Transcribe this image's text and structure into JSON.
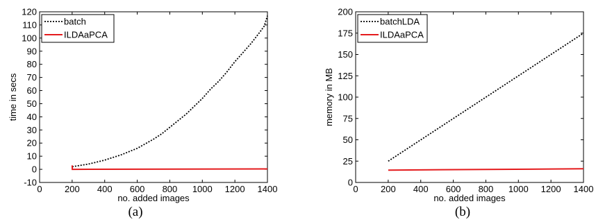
{
  "chart_data": [
    {
      "type": "line",
      "caption": "(a)",
      "xlabel": "no. added images",
      "ylabel": "time in secs",
      "xlim": [
        0,
        1400
      ],
      "ylim": [
        -10,
        120
      ],
      "xticks": [
        0,
        200,
        400,
        600,
        800,
        1000,
        1200,
        1400
      ],
      "yticks": [
        -10,
        0,
        10,
        20,
        30,
        40,
        50,
        60,
        70,
        80,
        90,
        100,
        110,
        120
      ],
      "grid": false,
      "legend_position": "top-left",
      "series": [
        {
          "name": "batch",
          "style": "dotted",
          "color": "#000000",
          "x": [
            200,
            250,
            300,
            350,
            400,
            450,
            500,
            550,
            600,
            650,
            700,
            750,
            800,
            850,
            900,
            950,
            1000,
            1050,
            1100,
            1150,
            1200,
            1250,
            1300,
            1350,
            1380,
            1400
          ],
          "y": [
            2,
            3,
            4,
            5.5,
            7,
            9,
            11,
            13.5,
            16,
            19.5,
            23,
            27,
            32,
            37,
            42,
            48,
            54,
            61,
            67,
            74,
            82,
            89,
            96,
            104,
            109,
            117
          ]
        },
        {
          "name": "ILDAaPCA",
          "style": "solid",
          "color": "#e41a1c",
          "x": [
            200,
            201,
            205,
            1400
          ],
          "y": [
            3,
            0,
            0,
            0.3
          ]
        }
      ]
    },
    {
      "type": "line",
      "caption": "(b)",
      "xlabel": "no. added images",
      "ylabel": "memory in MB",
      "xlim": [
        0,
        1400
      ],
      "ylim": [
        0,
        200
      ],
      "xticks": [
        0,
        200,
        400,
        600,
        800,
        1000,
        1200,
        1400
      ],
      "yticks": [
        0,
        25,
        50,
        75,
        100,
        125,
        150,
        175,
        200
      ],
      "grid": false,
      "legend_position": "top-left",
      "series": [
        {
          "name": "batchLDA",
          "style": "dotted",
          "color": "#000000",
          "x": [
            200,
            1400
          ],
          "y": [
            25,
            175
          ]
        },
        {
          "name": "ILDAaPCA",
          "style": "solid",
          "color": "#e41a1c",
          "x": [
            200,
            1400
          ],
          "y": [
            14.5,
            16
          ]
        }
      ]
    }
  ]
}
